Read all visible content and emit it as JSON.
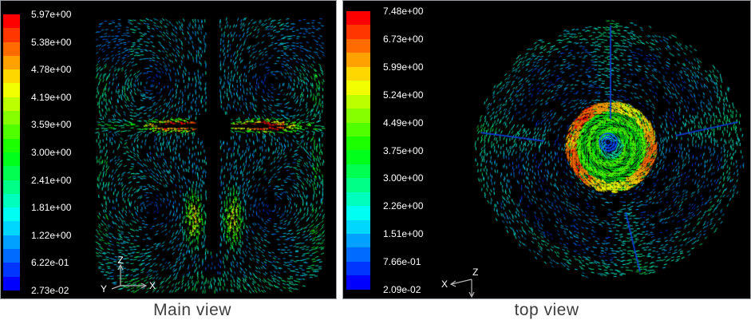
{
  "figure": {
    "left_panel": {
      "caption": "Main view",
      "legend_ticks": [
        "5.97e+00",
        "5.38e+00",
        "4.78e+00",
        "4.19e+00",
        "3.59e+00",
        "3.00e+00",
        "2.41e+00",
        "1.81e+00",
        "1.22e+00",
        "6.22e-01",
        "2.73e-02"
      ],
      "axis_labels": {
        "up": "Z",
        "right": "X",
        "out": "Y"
      }
    },
    "right_panel": {
      "caption": "top view",
      "legend_ticks": [
        "7.48e+00",
        "6.73e+00",
        "5.99e+00",
        "5.24e+00",
        "4.49e+00",
        "3.75e+00",
        "3.00e+00",
        "2.26e+00",
        "1.51e+00",
        "7.66e-01",
        "2.09e-02"
      ],
      "axis_labels": {
        "left": "X",
        "origin": "Z"
      }
    }
  },
  "colors": {
    "page_background": "#ffffff",
    "panel_background": "#000000",
    "panel_border": "#9aa0a4",
    "tick_text": "#ffffff",
    "caption_text": "#3d3d3d",
    "axis_line": "#b5b5b5",
    "baffle_line": "#0a3fd6",
    "colormap": [
      "#ff0000",
      "#ff3600",
      "#ff6b00",
      "#ffa100",
      "#ffd700",
      "#f2ff00",
      "#bcff00",
      "#86ff00",
      "#50ff00",
      "#1bff00",
      "#00ff1b",
      "#00ff50",
      "#00ff86",
      "#00ffbc",
      "#00fff2",
      "#00d7ff",
      "#00a1ff",
      "#006bff",
      "#0036ff",
      "#0000ff"
    ]
  },
  "chart_data": [
    {
      "type": "heatmap",
      "subtype": "velocity-vector-field",
      "title": "Main view",
      "view": "side cross-section of stirred tank",
      "legend_ticks": [
        5.97,
        5.38,
        4.78,
        4.19,
        3.59,
        3.0,
        2.41,
        1.81,
        1.22,
        0.622,
        0.0273
      ],
      "value_range": [
        0.0273,
        5.97
      ],
      "legend_format": "scientific e-notation",
      "colormap": "rainbow, 20 discrete bands, red=max (top) to blue=min (bottom)",
      "legend_position": "left",
      "axis_triad": [
        "Z up",
        "X right",
        "Y out-of-plane"
      ],
      "features": [
        "high-velocity radial impeller jets at mid-height, red-orange cores ~5-6",
        "two yellow-green plumes below hub along shaft ~3-4",
        "bright cyan boundary flow along side walls and rounded bottom ~1.5-2",
        "dark recirculation vortex cores in upper and lower halves ~0.3-0.8",
        "central black shaft and hub"
      ]
    },
    {
      "type": "heatmap",
      "subtype": "velocity-vector-field",
      "title": "top view",
      "view": "top view of stirred tank",
      "legend_ticks": [
        7.48,
        6.73,
        5.99,
        5.24,
        4.49,
        3.75,
        3.0,
        2.26,
        1.51,
        0.766,
        0.0209
      ],
      "value_range": [
        0.0209,
        7.48
      ],
      "legend_format": "scientific e-notation",
      "colormap": "rainbow, 20 discrete bands, red=max (top) to blue=min (bottom)",
      "legend_position": "left",
      "axis_triad": [
        "X toward upper-left",
        "Z at origin",
        "unlabeled arrow down"
      ],
      "features": [
        "circular swirling tangential flow of dark blue and cyan vectors ~0.5-1.5",
        "four bright cyan baffle wakes with dark blue radial lines",
        "central impeller disk with orange-yellow rim ~5-6.5, green spiral body ~3.5-4.5, blue spiral core ~1"
      ]
    }
  ]
}
